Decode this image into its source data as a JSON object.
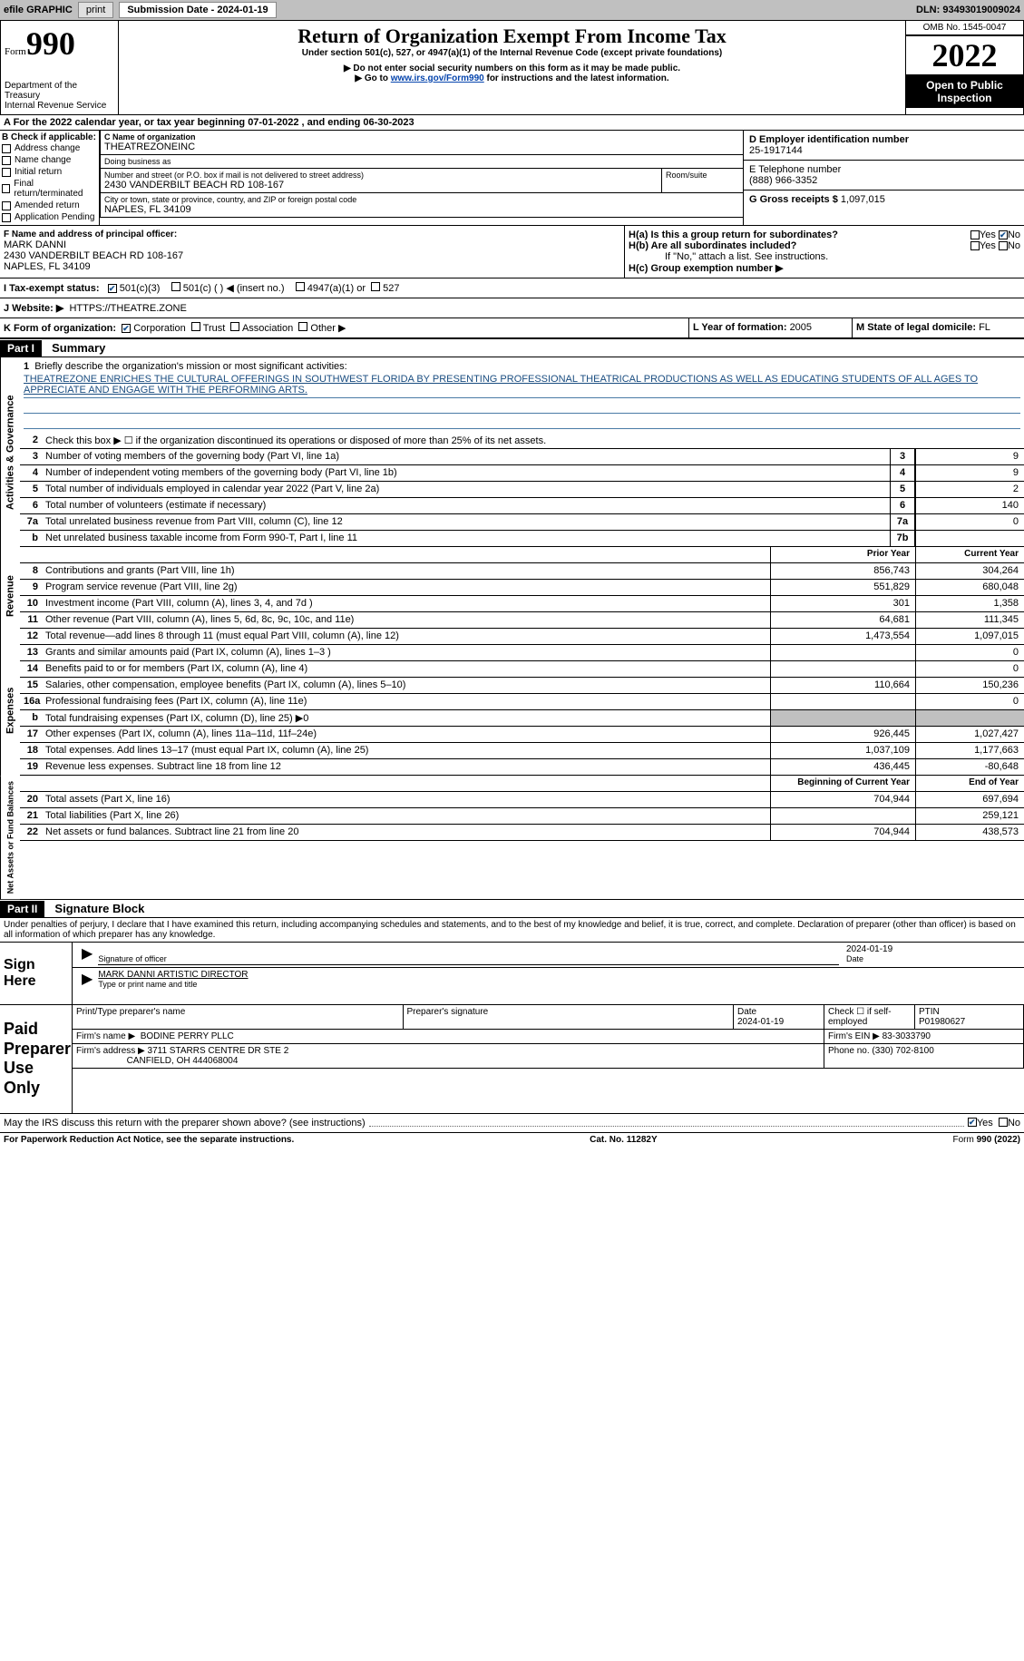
{
  "header": {
    "efile": "efile GRAPHIC",
    "print": "print",
    "sub_date_label": "Submission Date - 2024-01-19",
    "dln": "DLN: 93493019009024"
  },
  "form_header": {
    "form_word": "Form",
    "form_num": "990",
    "dept": "Department of the Treasury",
    "irs": "Internal Revenue Service",
    "title": "Return of Organization Exempt From Income Tax",
    "subtitle": "Under section 501(c), 527, or 4947(a)(1) of the Internal Revenue Code (except private foundations)",
    "note1": "▶ Do not enter social security numbers on this form as it may be made public.",
    "note2_pre": "▶ Go to ",
    "note2_link": "www.irs.gov/Form990",
    "note2_post": " for instructions and the latest information.",
    "omb": "OMB No. 1545-0047",
    "year": "2022",
    "open": "Open to Public Inspection"
  },
  "period": {
    "text": "A For the 2022 calendar year, or tax year beginning 07-01-2022     , and ending 06-30-2023"
  },
  "section_b": {
    "label": "B Check if applicable:",
    "opts": [
      "Address change",
      "Name change",
      "Initial return",
      "Final return/terminated",
      "Amended return",
      "Application Pending"
    ]
  },
  "section_c": {
    "name_label": "C Name of organization",
    "name": "THEATREZONEINC",
    "dba_label": "Doing business as",
    "dba": "",
    "street_label": "Number and street (or P.O. box if mail is not delivered to street address)",
    "room_label": "Room/suite",
    "street": "2430 VANDERBILT BEACH RD 108-167",
    "city_label": "City or town, state or province, country, and ZIP or foreign postal code",
    "city": "NAPLES, FL  34109"
  },
  "section_d": {
    "label": "D Employer identification number",
    "val": "25-1917144"
  },
  "section_e": {
    "label": "E Telephone number",
    "val": "(888) 966-3352"
  },
  "section_g": {
    "label": "G Gross receipts $",
    "val": "1,097,015"
  },
  "section_f": {
    "label": "F Name and address of principal officer:",
    "name": "MARK DANNI",
    "addr1": "2430 VANDERBILT BEACH RD 108-167",
    "addr2": "NAPLES, FL  34109"
  },
  "section_h": {
    "ha": "H(a)  Is this a group return for subordinates?",
    "hb": "H(b)  Are all subordinates included?",
    "hb_note": "If \"No,\" attach a list. See instructions.",
    "hc": "H(c)  Group exemption number ▶",
    "yes": "Yes",
    "no": "No"
  },
  "section_i": {
    "label": "I     Tax-exempt status:",
    "c3": "501(c)(3)",
    "c": "501(c) (  ) ◀ (insert no.)",
    "a1": "4947(a)(1) or",
    "s527": "527"
  },
  "section_j": {
    "label": "J    Website: ▶",
    "val": "HTTPS://THEATRE.ZONE"
  },
  "section_k": {
    "label": "K Form of organization:",
    "corp": "Corporation",
    "trust": "Trust",
    "assoc": "Association",
    "other": "Other ▶"
  },
  "section_l": {
    "label": "L Year of formation: ",
    "val": "2005"
  },
  "section_m": {
    "label": "M State of legal domicile: ",
    "val": "FL"
  },
  "part1": {
    "label": "Part I",
    "title": "Summary"
  },
  "summary": {
    "line1_label": "Briefly describe the organization's mission or most significant activities:",
    "mission": "THEATREZONE ENRICHES THE CULTURAL OFFERINGS IN SOUTHWEST FLORIDA BY PRESENTING PROFESSIONAL THEATRICAL PRODUCTIONS AS WELL AS EDUCATING STUDENTS OF ALL AGES TO APPRECIATE AND ENGAGE WITH THE PERFORMING ARTS.",
    "line2": "Check this box ▶ ☐  if the organization discontinued its operations or disposed of more than 25% of its net assets.",
    "lines": [
      {
        "n": "3",
        "t": "Number of voting members of the governing body (Part VI, line 1a)",
        "box": "3",
        "v": "9"
      },
      {
        "n": "4",
        "t": "Number of independent voting members of the governing body (Part VI, line 1b)",
        "box": "4",
        "v": "9"
      },
      {
        "n": "5",
        "t": "Total number of individuals employed in calendar year 2022 (Part V, line 2a)",
        "box": "5",
        "v": "2"
      },
      {
        "n": "6",
        "t": "Total number of volunteers (estimate if necessary)",
        "box": "6",
        "v": "140"
      },
      {
        "n": "7a",
        "t": "Total unrelated business revenue from Part VIII, column (C), line 12",
        "box": "7a",
        "v": "0"
      },
      {
        "n": "b",
        "t": "Net unrelated business taxable income from Form 990-T, Part I, line 11",
        "box": "7b",
        "v": ""
      }
    ],
    "prior_label": "Prior Year",
    "current_label": "Current Year",
    "rev": [
      {
        "n": "8",
        "t": "Contributions and grants (Part VIII, line 1h)",
        "p": "856,743",
        "c": "304,264"
      },
      {
        "n": "9",
        "t": "Program service revenue (Part VIII, line 2g)",
        "p": "551,829",
        "c": "680,048"
      },
      {
        "n": "10",
        "t": "Investment income (Part VIII, column (A), lines 3, 4, and 7d )",
        "p": "301",
        "c": "1,358"
      },
      {
        "n": "11",
        "t": "Other revenue (Part VIII, column (A), lines 5, 6d, 8c, 9c, 10c, and 11e)",
        "p": "64,681",
        "c": "111,345"
      },
      {
        "n": "12",
        "t": "Total revenue—add lines 8 through 11 (must equal Part VIII, column (A), line 12)",
        "p": "1,473,554",
        "c": "1,097,015"
      }
    ],
    "exp": [
      {
        "n": "13",
        "t": "Grants and similar amounts paid (Part IX, column (A), lines 1–3 )",
        "p": "",
        "c": "0"
      },
      {
        "n": "14",
        "t": "Benefits paid to or for members (Part IX, column (A), line 4)",
        "p": "",
        "c": "0"
      },
      {
        "n": "15",
        "t": "Salaries, other compensation, employee benefits (Part IX, column (A), lines 5–10)",
        "p": "110,664",
        "c": "150,236"
      },
      {
        "n": "16a",
        "t": "Professional fundraising fees (Part IX, column (A), line 11e)",
        "p": "",
        "c": "0"
      },
      {
        "n": "b",
        "t": "Total fundraising expenses (Part IX, column (D), line 25) ▶0",
        "p": "shade",
        "c": "shade"
      },
      {
        "n": "17",
        "t": "Other expenses (Part IX, column (A), lines 11a–11d, 11f–24e)",
        "p": "926,445",
        "c": "1,027,427"
      },
      {
        "n": "18",
        "t": "Total expenses. Add lines 13–17 (must equal Part IX, column (A), line 25)",
        "p": "1,037,109",
        "c": "1,177,663"
      },
      {
        "n": "19",
        "t": "Revenue less expenses. Subtract line 18 from line 12",
        "p": "436,445",
        "c": "-80,648"
      }
    ],
    "begin_label": "Beginning of Current Year",
    "end_label": "End of Year",
    "net": [
      {
        "n": "20",
        "t": "Total assets (Part X, line 16)",
        "p": "704,944",
        "c": "697,694"
      },
      {
        "n": "21",
        "t": "Total liabilities (Part X, line 26)",
        "p": "",
        "c": "259,121"
      },
      {
        "n": "22",
        "t": "Net assets or fund balances. Subtract line 21 from line 20",
        "p": "704,944",
        "c": "438,573"
      }
    ],
    "vert_gov": "Activities & Governance",
    "vert_rev": "Revenue",
    "vert_exp": "Expenses",
    "vert_net": "Net Assets or Fund Balances"
  },
  "part2": {
    "label": "Part II",
    "title": "Signature Block"
  },
  "sig": {
    "penalties": "Under penalties of perjury, I declare that I have examined this return, including accompanying schedules and statements, and to the best of my knowledge and belief, it is true, correct, and complete. Declaration of preparer (other than officer) is based on all information of which preparer has any knowledge.",
    "sign_here": "Sign Here",
    "sig_officer": "Signature of officer",
    "date_label": "Date",
    "date_val": "2024-01-19",
    "name_title": "MARK DANNI  ARTISTIC DIRECTOR",
    "type_name": "Type or print name and title",
    "paid": "Paid Preparer Use Only",
    "print_name_label": "Print/Type preparer's name",
    "prep_sig_label": "Preparer's signature",
    "prep_date_label": "Date",
    "prep_date": "2024-01-19",
    "check_if": "Check ☐ if self-employed",
    "ptin_label": "PTIN",
    "ptin": "P01980627",
    "firm_name_label": "Firm's name      ▶",
    "firm_name": "BODINE PERRY PLLC",
    "firm_ein_label": "Firm's EIN ▶",
    "firm_ein": "83-3033790",
    "firm_addr_label": "Firm's address ▶",
    "firm_addr1": "3711 STARRS CENTRE DR STE 2",
    "firm_addr2": "CANFIELD, OH  444068004",
    "phone_label": "Phone no.",
    "phone": "(330) 702-8100",
    "discuss": "May the IRS discuss this return with the preparer shown above? (see instructions)",
    "yes": "Yes",
    "no": "No"
  },
  "footer": {
    "paperwork": "For Paperwork Reduction Act Notice, see the separate instructions.",
    "cat": "Cat. No. 11282Y",
    "form": "Form 990 (2022)"
  }
}
